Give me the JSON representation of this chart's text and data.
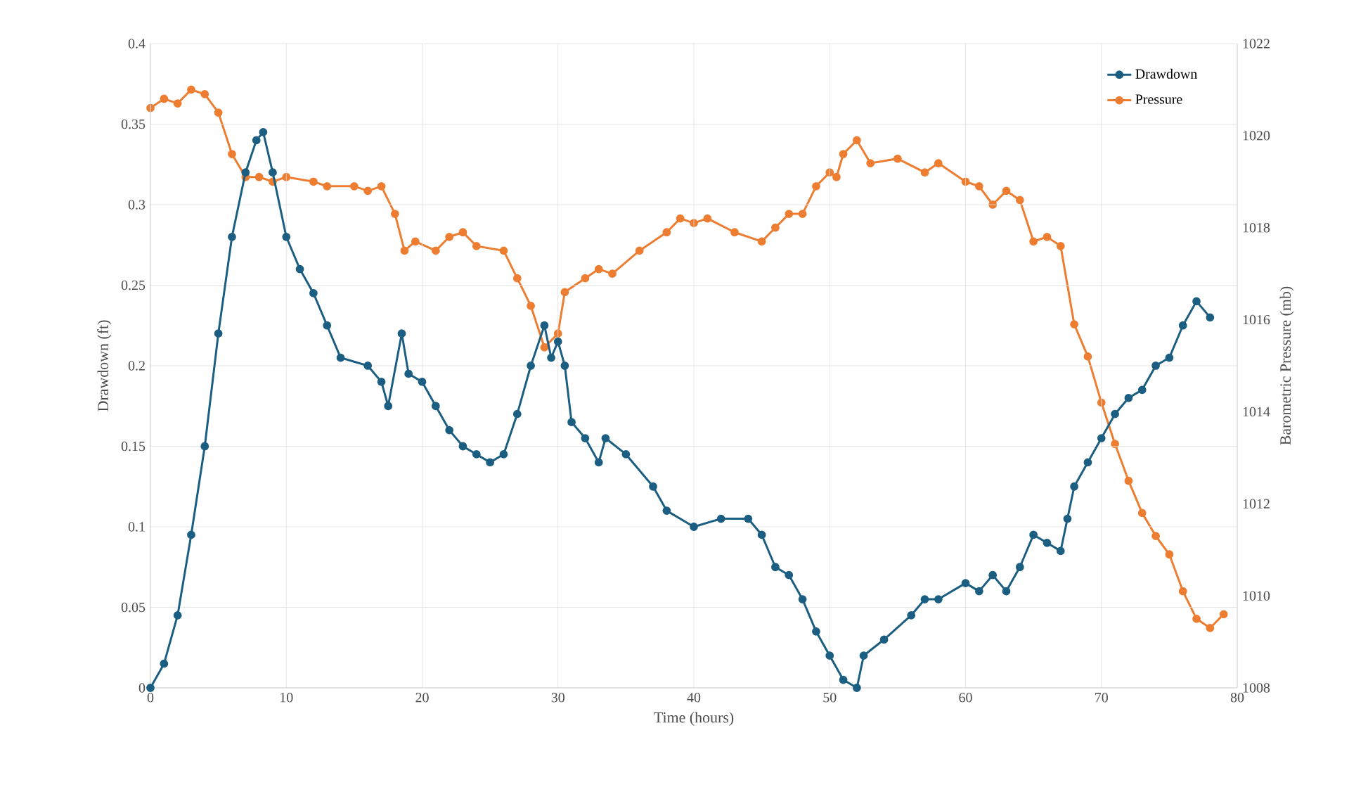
{
  "chart_data": {
    "type": "line",
    "xlabel": "Time (hours)",
    "ylabel": "Drawdown (ft)",
    "y2label": "Barometric Pressure (mb)",
    "xlim": [
      0,
      80
    ],
    "xticks": [
      0,
      10,
      20,
      30,
      40,
      50,
      60,
      70,
      80
    ],
    "ylim": [
      0,
      0.4
    ],
    "yticks": [
      0,
      0.05,
      0.1,
      0.15,
      0.2,
      0.25,
      0.3,
      0.35,
      0.4
    ],
    "y2lim": [
      1008,
      1022
    ],
    "y2ticks": [
      1008,
      1010,
      1012,
      1014,
      1016,
      1018,
      1020,
      1022
    ],
    "grid": true,
    "legend": "top right",
    "marker": "circle",
    "series": [
      {
        "name": "Drawdown",
        "color": "#1b5e82",
        "x": [
          0,
          1,
          2,
          3,
          4,
          5,
          6,
          7,
          7.8,
          8.3,
          9,
          10,
          11,
          12,
          13,
          14,
          16,
          17,
          17.5,
          18.5,
          19,
          20,
          21,
          22,
          23,
          24,
          25,
          26,
          27,
          28,
          29,
          29.5,
          30,
          30.5,
          31,
          32,
          33,
          33.5,
          35,
          37,
          38,
          40,
          42,
          44,
          45,
          46,
          47,
          48,
          49,
          50,
          51,
          52,
          52.5,
          54,
          56,
          57,
          58,
          60,
          61,
          62,
          63,
          64,
          65,
          66,
          67,
          67.5,
          68,
          69,
          70,
          71,
          72,
          73,
          74,
          75,
          76,
          77,
          78
        ],
        "values": [
          0,
          0.015,
          0.045,
          0.095,
          0.15,
          0.22,
          0.28,
          0.32,
          0.34,
          0.345,
          0.32,
          0.28,
          0.26,
          0.245,
          0.225,
          0.205,
          0.2,
          0.19,
          0.175,
          0.22,
          0.195,
          0.19,
          0.175,
          0.16,
          0.15,
          0.145,
          0.14,
          0.145,
          0.17,
          0.2,
          0.225,
          0.205,
          0.215,
          0.2,
          0.165,
          0.155,
          0.14,
          0.155,
          0.145,
          0.125,
          0.11,
          0.1,
          0.105,
          0.105,
          0.095,
          0.075,
          0.07,
          0.055,
          0.035,
          0.02,
          0.005,
          0,
          0.02,
          0.03,
          0.045,
          0.055,
          0.055,
          0.065,
          0.06,
          0.07,
          0.06,
          0.075,
          0.095,
          0.09,
          0.085,
          0.105,
          0.125,
          0.14,
          0.155,
          0.17,
          0.18,
          0.185,
          0.2,
          0.205,
          0.225,
          0.24,
          0.23
        ]
      },
      {
        "name": "Pressure",
        "color": "#ed7d31",
        "axis": "y2",
        "x": [
          0,
          1,
          2,
          3,
          4,
          5,
          6,
          7,
          8,
          9,
          10,
          12,
          13,
          15,
          16,
          17,
          18,
          18.7,
          19.5,
          21,
          22,
          23,
          24,
          26,
          27,
          28,
          29,
          30,
          30.5,
          32,
          33,
          34,
          36,
          38,
          39,
          40,
          41,
          43,
          45,
          46,
          47,
          48,
          49,
          50,
          50.5,
          51,
          52,
          53,
          55,
          57,
          58,
          60,
          61,
          62,
          63,
          64,
          65,
          66,
          67,
          68,
          69,
          70,
          71,
          72,
          73,
          74,
          75,
          76,
          77,
          78,
          79
        ],
        "values": [
          1020.6,
          1020.8,
          1020.7,
          1021.0,
          1020.9,
          1020.5,
          1019.6,
          1019.1,
          1019.1,
          1019.0,
          1019.1,
          1019.0,
          1018.9,
          1018.9,
          1018.8,
          1018.9,
          1018.3,
          1017.5,
          1017.7,
          1017.5,
          1017.8,
          1017.9,
          1017.6,
          1017.5,
          1016.9,
          1016.3,
          1015.4,
          1015.7,
          1016.6,
          1016.9,
          1017.1,
          1017.0,
          1017.5,
          1017.9,
          1018.2,
          1018.1,
          1018.2,
          1017.9,
          1017.7,
          1018.0,
          1018.3,
          1018.3,
          1018.9,
          1019.2,
          1019.1,
          1019.6,
          1019.9,
          1019.4,
          1019.5,
          1019.2,
          1019.4,
          1019.0,
          1018.9,
          1018.5,
          1018.8,
          1018.6,
          1017.7,
          1017.8,
          1017.6,
          1015.9,
          1015.2,
          1014.2,
          1013.3,
          1012.5,
          1011.8,
          1011.3,
          1010.9,
          1010.1,
          1009.5,
          1009.3,
          1009.6
        ]
      }
    ]
  }
}
